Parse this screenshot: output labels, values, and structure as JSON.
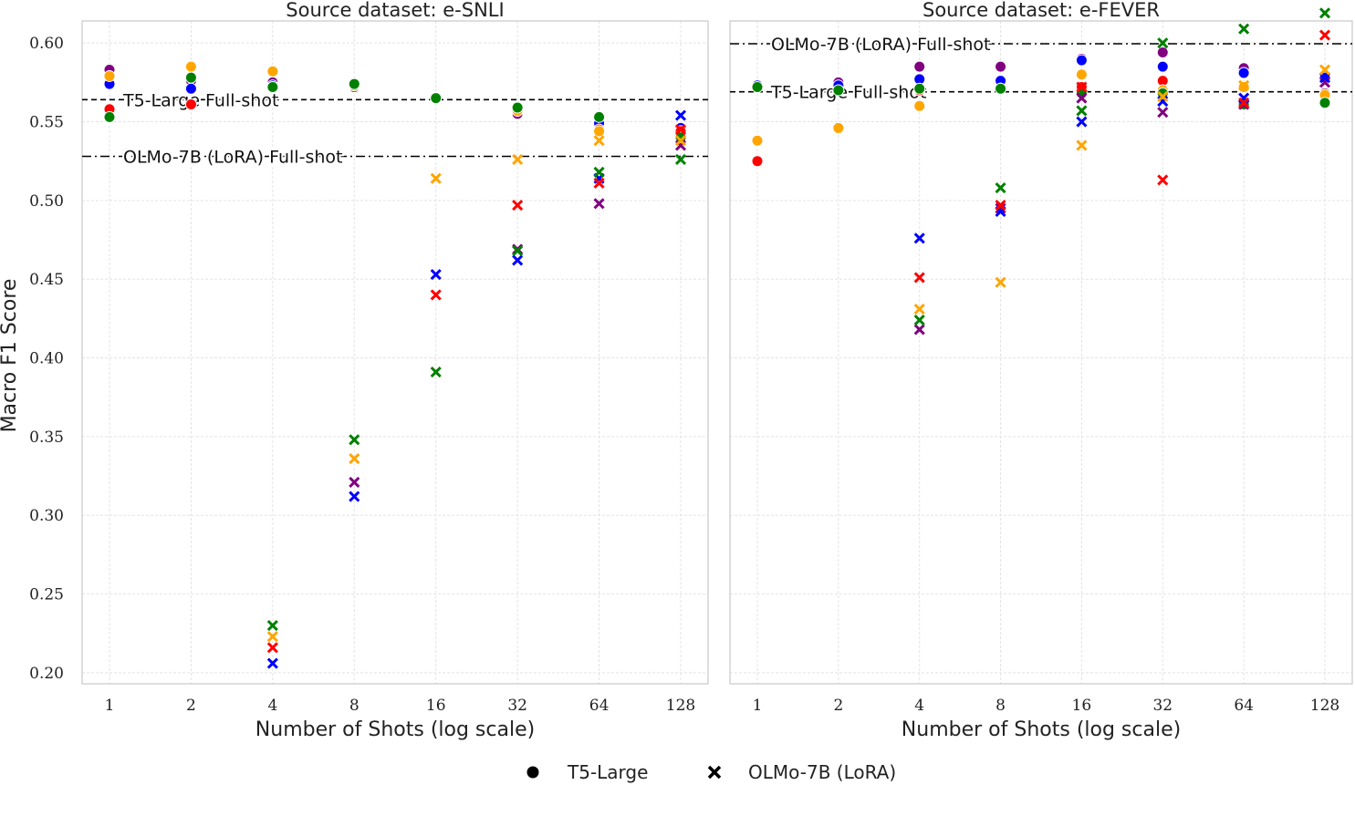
{
  "colors": {
    "purple": "#800080",
    "blue": "#0000ff",
    "red": "#ff0000",
    "orange": "#ffa500",
    "green": "#008000"
  },
  "y_axis_label": "Macro F1 Score",
  "legend": [
    {
      "label": "T5-Large",
      "marker": "circle"
    },
    {
      "label": "OLMo-7B (LoRA)",
      "marker": "x"
    }
  ],
  "chart_data": [
    {
      "type": "scatter",
      "title": "Source dataset: e-SNLI",
      "xlabel": "Number of Shots (log scale)",
      "ylabel": "Macro F1 Score",
      "x_scale": "log2",
      "x_ticks": [
        "1",
        "2",
        "4",
        "8",
        "16",
        "32",
        "64",
        "128"
      ],
      "y_ticks": [
        "0.20",
        "0.25",
        "0.30",
        "0.35",
        "0.40",
        "0.45",
        "0.50",
        "0.55",
        "0.60"
      ],
      "ylim": [
        0.193,
        0.614
      ],
      "grid": true,
      "reference_lines": [
        {
          "label": "T5-Large Full-shot",
          "value": 0.564,
          "style": "dashed"
        },
        {
          "label": "OLMo-7B (LoRA) Full-shot",
          "value": 0.528,
          "style": "dashdot"
        }
      ],
      "series": [
        {
          "model": "T5-Large",
          "marker": "circle",
          "color": "purple",
          "points": [
            [
              1,
              0.583
            ],
            [
              2,
              0.576
            ],
            [
              4,
              0.575
            ],
            [
              8,
              0.573
            ],
            [
              16,
              0.565
            ],
            [
              32,
              0.555
            ],
            [
              64,
              0.552
            ],
            [
              128,
              0.545
            ]
          ]
        },
        {
          "model": "T5-Large",
          "marker": "circle",
          "color": "blue",
          "points": [
            [
              1,
              0.574
            ],
            [
              2,
              0.571
            ],
            [
              4,
              0.573
            ],
            [
              8,
              0.572
            ],
            [
              16,
              0.565
            ],
            [
              32,
              0.557
            ],
            [
              64,
              0.549
            ],
            [
              128,
              0.546
            ]
          ]
        },
        {
          "model": "T5-Large",
          "marker": "circle",
          "color": "red",
          "points": [
            [
              1,
              0.558
            ],
            [
              2,
              0.561
            ],
            [
              4,
              0.572
            ],
            [
              8,
              0.573
            ],
            [
              16,
              0.565
            ],
            [
              32,
              0.558
            ],
            [
              64,
              0.545
            ],
            [
              128,
              0.544
            ]
          ]
        },
        {
          "model": "T5-Large",
          "marker": "circle",
          "color": "orange",
          "points": [
            [
              1,
              0.579
            ],
            [
              2,
              0.585
            ],
            [
              4,
              0.582
            ],
            [
              8,
              0.573
            ],
            [
              16,
              0.565
            ],
            [
              32,
              0.557
            ],
            [
              64,
              0.544
            ],
            [
              128,
              0.541
            ]
          ]
        },
        {
          "model": "T5-Large",
          "marker": "circle",
          "color": "green",
          "points": [
            [
              1,
              0.553
            ],
            [
              2,
              0.578
            ],
            [
              4,
              0.572
            ],
            [
              8,
              0.574
            ],
            [
              16,
              0.565
            ],
            [
              32,
              0.559
            ],
            [
              64,
              0.553
            ],
            [
              128,
              0.54
            ]
          ]
        },
        {
          "model": "OLMo-7B (LoRA)",
          "marker": "x",
          "color": "purple",
          "points": [
            [
              8,
              0.321
            ],
            [
              32,
              0.469
            ],
            [
              64,
              0.498
            ],
            [
              128,
              0.535
            ]
          ]
        },
        {
          "model": "OLMo-7B (LoRA)",
          "marker": "x",
          "color": "blue",
          "points": [
            [
              4,
              0.206
            ],
            [
              8,
              0.312
            ],
            [
              16,
              0.453
            ],
            [
              32,
              0.462
            ],
            [
              64,
              0.514
            ],
            [
              128,
              0.554
            ]
          ]
        },
        {
          "model": "OLMo-7B (LoRA)",
          "marker": "x",
          "color": "red",
          "points": [
            [
              4,
              0.216
            ],
            [
              16,
              0.44
            ],
            [
              32,
              0.497
            ],
            [
              64,
              0.511
            ],
            [
              128,
              0.545
            ]
          ]
        },
        {
          "model": "OLMo-7B (LoRA)",
          "marker": "x",
          "color": "orange",
          "points": [
            [
              4,
              0.223
            ],
            [
              8,
              0.336
            ],
            [
              16,
              0.514
            ],
            [
              32,
              0.526
            ],
            [
              64,
              0.538
            ],
            [
              128,
              0.538
            ]
          ]
        },
        {
          "model": "OLMo-7B (LoRA)",
          "marker": "x",
          "color": "green",
          "points": [
            [
              4,
              0.23
            ],
            [
              8,
              0.348
            ],
            [
              16,
              0.391
            ],
            [
              32,
              0.468
            ],
            [
              64,
              0.518
            ],
            [
              128,
              0.526
            ]
          ]
        }
      ]
    },
    {
      "type": "scatter",
      "title": "Source dataset: e-FEVER",
      "xlabel": "Number of Shots (log scale)",
      "x_scale": "log2",
      "x_ticks": [
        "1",
        "2",
        "4",
        "8",
        "16",
        "32",
        "64",
        "128"
      ],
      "ylim": [
        0.193,
        0.614
      ],
      "grid": true,
      "reference_lines": [
        {
          "label": "OLMo-7B (LoRA) Full-shot",
          "value": 0.625,
          "style": "dashdot"
        },
        {
          "label": "T5-Large Full-shot",
          "value": 0.569,
          "style": "dashed"
        }
      ],
      "series": [
        {
          "model": "T5-Large",
          "marker": "circle",
          "color": "purple",
          "points": [
            [
              1,
              0.573
            ],
            [
              2,
              0.575
            ],
            [
              4,
              0.585
            ],
            [
              8,
              0.585
            ],
            [
              16,
              0.59
            ],
            [
              32,
              0.594
            ],
            [
              64,
              0.584
            ],
            [
              128,
              0.568
            ]
          ]
        },
        {
          "model": "T5-Large",
          "marker": "circle",
          "color": "blue",
          "points": [
            [
              1,
              0.573
            ],
            [
              2,
              0.573
            ],
            [
              4,
              0.577
            ],
            [
              8,
              0.576
            ],
            [
              16,
              0.589
            ],
            [
              32,
              0.585
            ],
            [
              64,
              0.581
            ],
            [
              128,
              0.578
            ]
          ]
        },
        {
          "model": "T5-Large",
          "marker": "circle",
          "color": "red",
          "points": [
            [
              1,
              0.525
            ],
            [
              4,
              0.57
            ],
            [
              8,
              0.571
            ],
            [
              16,
              0.572
            ],
            [
              32,
              0.576
            ],
            [
              64,
              0.572
            ],
            [
              128,
              0.567
            ]
          ]
        },
        {
          "model": "T5-Large",
          "marker": "circle",
          "color": "orange",
          "points": [
            [
              1,
              0.538
            ],
            [
              2,
              0.546
            ],
            [
              4,
              0.56
            ],
            [
              8,
              0.571
            ],
            [
              16,
              0.58
            ],
            [
              32,
              0.57
            ],
            [
              64,
              0.572
            ],
            [
              128,
              0.567
            ]
          ]
        },
        {
          "model": "T5-Large",
          "marker": "circle",
          "color": "green",
          "points": [
            [
              1,
              0.572
            ],
            [
              2,
              0.57
            ],
            [
              4,
              0.571
            ],
            [
              8,
              0.571
            ],
            [
              16,
              0.568
            ],
            [
              32,
              0.568
            ],
            [
              64,
              0.561
            ],
            [
              128,
              0.562
            ]
          ]
        },
        {
          "model": "OLMo-7B (LoRA)",
          "marker": "x",
          "color": "purple",
          "points": [
            [
              4,
              0.418
            ],
            [
              8,
              0.495
            ],
            [
              16,
              0.565
            ],
            [
              32,
              0.556
            ],
            [
              64,
              0.561
            ],
            [
              128,
              0.575
            ]
          ]
        },
        {
          "model": "OLMo-7B (LoRA)",
          "marker": "x",
          "color": "blue",
          "points": [
            [
              4,
              0.476
            ],
            [
              8,
              0.493
            ],
            [
              16,
              0.55
            ],
            [
              32,
              0.563
            ],
            [
              64,
              0.565
            ],
            [
              128,
              0.578
            ]
          ]
        },
        {
          "model": "OLMo-7B (LoRA)",
          "marker": "x",
          "color": "red",
          "points": [
            [
              4,
              0.451
            ],
            [
              8,
              0.497
            ],
            [
              16,
              0.572
            ],
            [
              32,
              0.513
            ],
            [
              64,
              0.562
            ],
            [
              128,
              0.605
            ]
          ]
        },
        {
          "model": "OLMo-7B (LoRA)",
          "marker": "x",
          "color": "orange",
          "points": [
            [
              4,
              0.431
            ],
            [
              8,
              0.448
            ],
            [
              16,
              0.535
            ],
            [
              32,
              0.566
            ],
            [
              64,
              0.573
            ],
            [
              128,
              0.583
            ]
          ]
        },
        {
          "model": "OLMo-7B (LoRA)",
          "marker": "x",
          "color": "green",
          "points": [
            [
              4,
              0.424
            ],
            [
              8,
              0.508
            ],
            [
              16,
              0.557
            ],
            [
              32,
              0.6
            ],
            [
              64,
              0.609
            ],
            [
              128,
              0.619
            ]
          ]
        }
      ]
    }
  ]
}
